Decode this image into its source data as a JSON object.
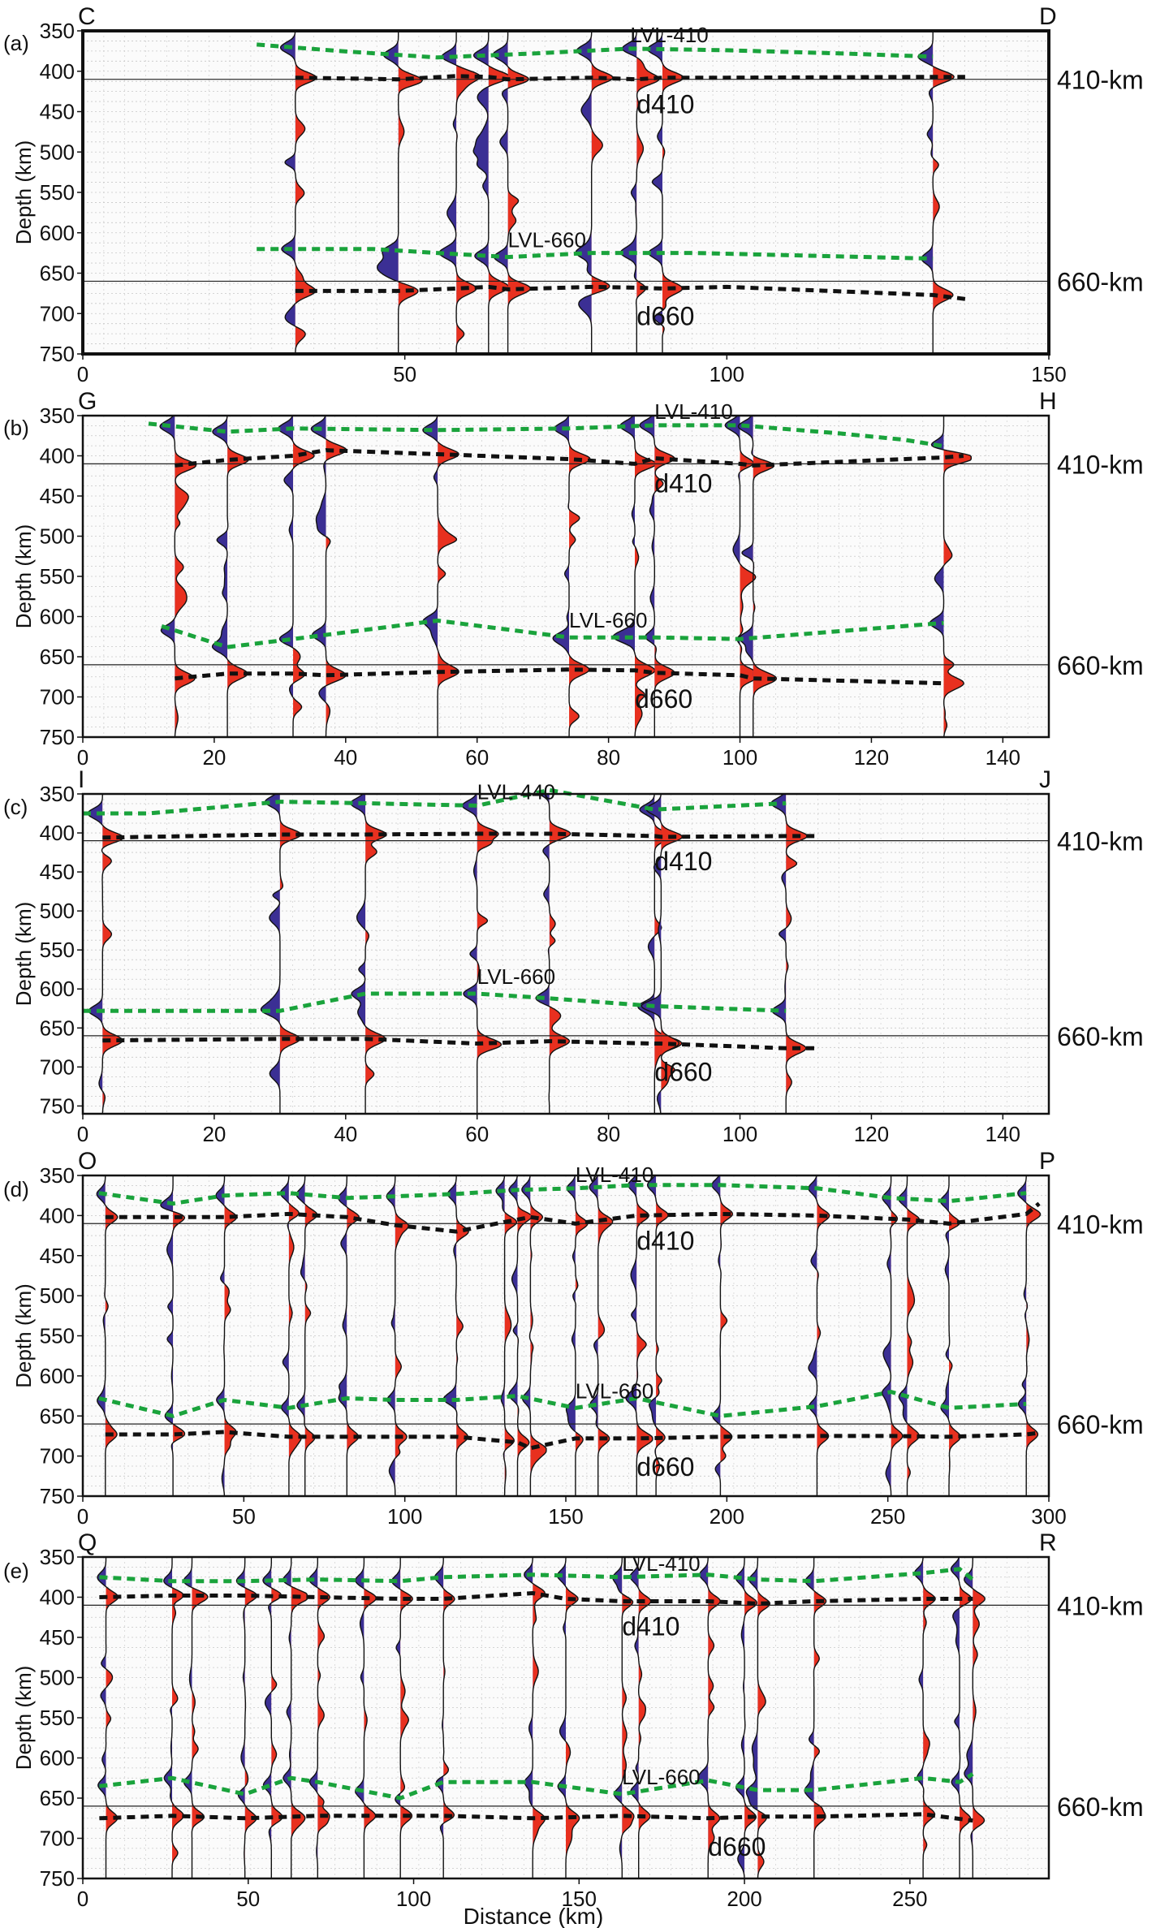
{
  "figure": {
    "ylabel": "Depth (km)",
    "xlabel": "Distance (km)",
    "boundary_labels": [
      "410-km",
      "660-km"
    ],
    "colors": {
      "positive": "#e8301f",
      "negative": "#3b2f94",
      "lvl_line": "#1aa33c",
      "disc_line": "#111111",
      "grid": "#c8c8c8"
    }
  },
  "chart_data": [
    {
      "type": "line",
      "panel": "(a)",
      "start_label": "C",
      "end_label": "D",
      "xlim": [
        0,
        150
      ],
      "xticks": [
        0,
        50,
        100,
        150
      ],
      "ylim": [
        350,
        750
      ],
      "yticks": [
        350,
        400,
        450,
        500,
        550,
        600,
        650,
        700,
        750
      ],
      "reference_depths": [
        410,
        660
      ],
      "trace_positions": [
        33,
        49,
        58,
        63,
        66,
        79,
        86,
        90,
        132
      ],
      "series": [
        {
          "name": "LVL-410",
          "x": [
            27,
            40,
            55,
            70,
            85,
            100,
            118,
            132
          ],
          "y": [
            367,
            375,
            383,
            378,
            372,
            374,
            378,
            382
          ]
        },
        {
          "name": "d410",
          "x": [
            33,
            49,
            58,
            63,
            66,
            79,
            86,
            90,
            100,
            132,
            137
          ],
          "y": [
            408,
            410,
            406,
            407,
            410,
            408,
            410,
            408,
            408,
            407,
            407
          ]
        },
        {
          "name": "LVL-660",
          "x": [
            27,
            45,
            55,
            66,
            79,
            95,
            132
          ],
          "y": [
            620,
            620,
            625,
            630,
            625,
            625,
            632
          ]
        },
        {
          "name": "d660",
          "x": [
            33,
            49,
            58,
            63,
            66,
            79,
            86,
            90,
            100,
            132,
            137
          ],
          "y": [
            672,
            672,
            669,
            667,
            670,
            667,
            668,
            669,
            667,
            677,
            682
          ]
        }
      ],
      "annotations": [
        "LVL-410",
        "d410",
        "LVL-660",
        "d660"
      ]
    },
    {
      "type": "line",
      "panel": "(b)",
      "start_label": "G",
      "end_label": "H",
      "xlim": [
        0,
        147
      ],
      "xticks": [
        0,
        20,
        40,
        60,
        80,
        100,
        120,
        140
      ],
      "ylim": [
        350,
        750
      ],
      "yticks": [
        350,
        400,
        450,
        500,
        550,
        600,
        650,
        700,
        750
      ],
      "reference_depths": [
        410,
        660
      ],
      "trace_positions": [
        14,
        22,
        32,
        37,
        54,
        74,
        84,
        87,
        100,
        102,
        131
      ],
      "series": [
        {
          "name": "LVL-410",
          "x": [
            10,
            22,
            32,
            54,
            74,
            87,
            100,
            115,
            125,
            131
          ],
          "y": [
            360,
            370,
            366,
            368,
            366,
            362,
            362,
            372,
            380,
            388
          ]
        },
        {
          "name": "d410",
          "x": [
            14,
            22,
            32,
            37,
            54,
            74,
            84,
            87,
            100,
            102,
            131,
            134
          ],
          "y": [
            412,
            405,
            400,
            393,
            398,
            404,
            410,
            403,
            410,
            412,
            402,
            400
          ]
        },
        {
          "name": "LVL-660",
          "x": [
            12,
            22,
            32,
            54,
            74,
            87,
            100,
            131
          ],
          "y": [
            612,
            638,
            628,
            605,
            626,
            626,
            628,
            608
          ]
        },
        {
          "name": "d660",
          "x": [
            14,
            22,
            32,
            37,
            54,
            74,
            84,
            87,
            100,
            102,
            131
          ],
          "y": [
            677,
            671,
            671,
            673,
            669,
            666,
            667,
            670,
            673,
            677,
            683
          ]
        }
      ],
      "annotations": [
        "LVL-410",
        "d410",
        "LVL-660",
        "d660"
      ]
    },
    {
      "type": "line",
      "panel": "(c)",
      "start_label": "I",
      "end_label": "J",
      "xlim": [
        0,
        147
      ],
      "xticks": [
        0,
        20,
        40,
        60,
        80,
        100,
        120,
        140
      ],
      "ylim": [
        350,
        760
      ],
      "yticks": [
        350,
        400,
        450,
        500,
        550,
        600,
        650,
        700,
        750
      ],
      "reference_depths": [
        410,
        660
      ],
      "trace_positions": [
        3,
        30,
        43,
        60,
        71,
        87,
        88,
        107
      ],
      "series": [
        {
          "name": "LVL-440",
          "x": [
            0,
            10,
            30,
            43,
            60,
            71,
            87,
            107
          ],
          "y": [
            375,
            375,
            360,
            362,
            365,
            345,
            370,
            362
          ]
        },
        {
          "name": "d410",
          "x": [
            3,
            30,
            43,
            60,
            71,
            87,
            88,
            107,
            112
          ],
          "y": [
            406,
            402,
            402,
            401,
            401,
            404,
            405,
            404,
            404
          ]
        },
        {
          "name": "LVL-660",
          "x": [
            0,
            30,
            43,
            60,
            71,
            87,
            107
          ],
          "y": [
            628,
            628,
            606,
            606,
            612,
            622,
            628
          ]
        },
        {
          "name": "d660",
          "x": [
            3,
            30,
            43,
            60,
            71,
            87,
            88,
            107,
            112
          ],
          "y": [
            666,
            664,
            664,
            670,
            667,
            670,
            670,
            676,
            676
          ]
        }
      ],
      "annotations": [
        "LVL-440",
        "d410",
        "LVL-660",
        "d660"
      ]
    },
    {
      "type": "line",
      "panel": "(d)",
      "start_label": "O",
      "end_label": "P",
      "xlim": [
        0,
        300
      ],
      "xticks": [
        0,
        50,
        100,
        150,
        200,
        250,
        300
      ],
      "ylim": [
        350,
        750
      ],
      "yticks": [
        350,
        400,
        450,
        500,
        550,
        600,
        650,
        700,
        750
      ],
      "reference_depths": [
        410,
        660
      ],
      "trace_positions": [
        7,
        28,
        44,
        64,
        69,
        82,
        97,
        116,
        131,
        135,
        139,
        153,
        160,
        172,
        178,
        198,
        228,
        251,
        256,
        269,
        293
      ],
      "series": [
        {
          "name": "LVL-410",
          "x": [
            5,
            28,
            44,
            64,
            82,
            97,
            116,
            135,
            153,
            172,
            198,
            228,
            251,
            269,
            293
          ],
          "y": [
            372,
            385,
            375,
            372,
            378,
            376,
            373,
            368,
            366,
            362,
            362,
            366,
            378,
            382,
            372
          ]
        },
        {
          "name": "d410",
          "x": [
            7,
            28,
            44,
            64,
            82,
            97,
            116,
            131,
            139,
            153,
            172,
            198,
            228,
            256,
            269,
            293,
            297
          ],
          "y": [
            402,
            402,
            402,
            398,
            402,
            412,
            420,
            408,
            402,
            410,
            400,
            398,
            400,
            405,
            410,
            398,
            385
          ]
        },
        {
          "name": "LVL-660",
          "x": [
            5,
            28,
            44,
            64,
            82,
            97,
            116,
            135,
            153,
            172,
            198,
            228,
            251,
            269,
            293
          ],
          "y": [
            628,
            650,
            630,
            640,
            628,
            630,
            630,
            625,
            640,
            628,
            650,
            638,
            620,
            640,
            635
          ]
        },
        {
          "name": "d660",
          "x": [
            7,
            28,
            44,
            64,
            82,
            97,
            116,
            135,
            139,
            153,
            172,
            198,
            228,
            251,
            269,
            293,
            297
          ],
          "y": [
            673,
            673,
            670,
            676,
            676,
            676,
            676,
            683,
            690,
            678,
            678,
            676,
            675,
            675,
            676,
            673,
            671
          ]
        }
      ],
      "annotations": [
        "LVL-410",
        "d410",
        "LVL-660",
        "d660"
      ]
    },
    {
      "type": "line",
      "panel": "(e)",
      "start_label": "Q",
      "end_label": "R",
      "xlim": [
        0,
        292
      ],
      "xticks": [
        0,
        50,
        100,
        150,
        200,
        250
      ],
      "ylim": [
        350,
        750
      ],
      "yticks": [
        350,
        400,
        450,
        500,
        550,
        600,
        650,
        700,
        750
      ],
      "reference_depths": [
        410,
        660
      ],
      "trace_positions": [
        7,
        27,
        33,
        49,
        57,
        63,
        71,
        85,
        96,
        109,
        136,
        146,
        163,
        168,
        189,
        200,
        204,
        221,
        254,
        265,
        269
      ],
      "series": [
        {
          "name": "LVL-410",
          "x": [
            5,
            27,
            49,
            71,
            96,
            109,
            136,
            163,
            189,
            204,
            221,
            254,
            265,
            269
          ],
          "y": [
            375,
            380,
            380,
            378,
            380,
            375,
            372,
            375,
            372,
            378,
            380,
            370,
            365,
            378
          ]
        },
        {
          "name": "d410",
          "x": [
            5,
            27,
            49,
            71,
            96,
            109,
            136,
            146,
            163,
            189,
            204,
            221,
            254,
            269
          ],
          "y": [
            400,
            398,
            398,
            400,
            402,
            402,
            395,
            402,
            405,
            405,
            408,
            405,
            402,
            402
          ]
        },
        {
          "name": "LVL-660",
          "x": [
            5,
            27,
            49,
            63,
            71,
            96,
            109,
            136,
            163,
            189,
            204,
            221,
            254,
            265,
            269
          ],
          "y": [
            635,
            625,
            645,
            625,
            630,
            650,
            630,
            630,
            645,
            628,
            640,
            640,
            625,
            630,
            620
          ]
        },
        {
          "name": "d660",
          "x": [
            5,
            27,
            49,
            71,
            96,
            109,
            136,
            163,
            189,
            204,
            221,
            254,
            269
          ],
          "y": [
            675,
            672,
            675,
            672,
            672,
            672,
            675,
            672,
            675,
            673,
            673,
            670,
            678
          ]
        }
      ],
      "annotations": [
        "LVL-410",
        "d410",
        "LVL-660",
        "d660"
      ]
    }
  ]
}
